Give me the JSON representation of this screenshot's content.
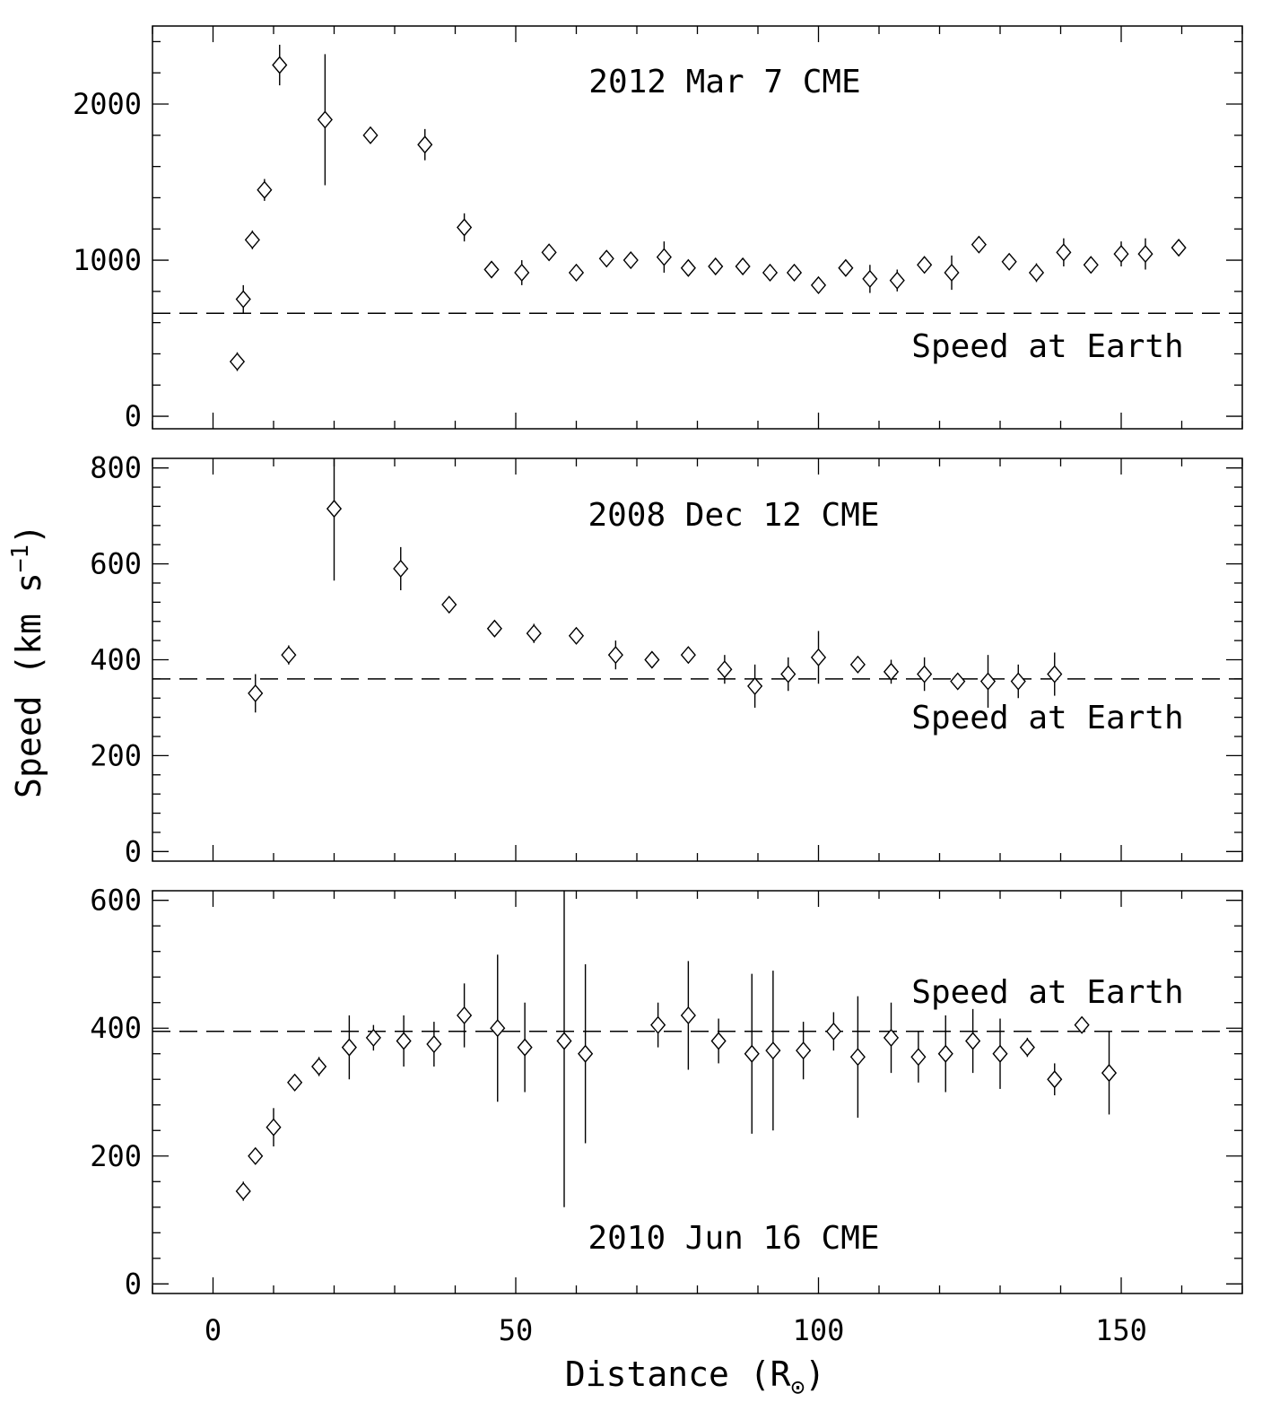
{
  "figure": {
    "ylabel": "Speed (km s",
    "ylabel_sup": "−1",
    "ylabel_close": ")",
    "xlabel": "Distance (R",
    "xlabel_sub": "⊙",
    "xlabel_close": ")"
  },
  "chart_data": [
    {
      "type": "scatter",
      "title": "2012 Mar 7 CME",
      "reference_label": "Speed at Earth",
      "reference_value": 660,
      "xlim": [
        -10,
        170
      ],
      "ylim": [
        -80,
        2500
      ],
      "xticks": [
        0,
        50,
        100,
        150
      ],
      "yticks": [
        0,
        1000,
        2000
      ],
      "ytick_labels": [
        "0",
        "1000",
        "2000"
      ],
      "x": [
        4,
        5,
        6.5,
        8.5,
        11,
        18.5,
        26,
        35,
        41.5,
        46,
        51,
        55.5,
        60,
        65,
        69,
        74.5,
        78.5,
        83,
        87.5,
        92,
        96,
        100,
        104.5,
        108.5,
        113,
        117.5,
        122,
        126.5,
        131.5,
        136,
        140.5,
        145,
        150,
        154,
        159.5
      ],
      "y": [
        350,
        750,
        1130,
        1450,
        2250,
        1900,
        1800,
        1740,
        1210,
        940,
        920,
        1050,
        920,
        1010,
        1000,
        1020,
        950,
        960,
        960,
        920,
        920,
        840,
        950,
        880,
        870,
        970,
        920,
        1100,
        990,
        920,
        1050,
        970,
        1040,
        1040,
        1080
      ],
      "err": [
        60,
        90,
        60,
        70,
        130,
        420,
        0,
        100,
        90,
        50,
        80,
        50,
        40,
        40,
        30,
        100,
        30,
        40,
        40,
        40,
        40,
        40,
        40,
        90,
        70,
        40,
        110,
        50,
        50,
        60,
        90,
        50,
        80,
        100,
        40
      ]
    },
    {
      "type": "scatter",
      "title": "2008 Dec 12 CME",
      "reference_label": "Speed at Earth",
      "reference_value": 360,
      "xlim": [
        -10,
        170
      ],
      "ylim": [
        -20,
        820
      ],
      "xticks": [
        0,
        50,
        100,
        150
      ],
      "yticks": [
        0,
        200,
        400,
        600,
        800
      ],
      "ytick_labels": [
        "0",
        "200",
        "400",
        "600",
        "800"
      ],
      "x": [
        7,
        12.5,
        20,
        31,
        39,
        46.5,
        53,
        60,
        66.5,
        72.5,
        78.5,
        84.5,
        89.5,
        95,
        100,
        106.5,
        112,
        117.5,
        123,
        128,
        133,
        139
      ],
      "y": [
        330,
        410,
        715,
        590,
        515,
        465,
        455,
        450,
        410,
        400,
        410,
        380,
        345,
        370,
        405,
        390,
        375,
        370,
        355,
        355,
        355,
        370
      ],
      "err": [
        40,
        20,
        150,
        45,
        15,
        10,
        20,
        15,
        30,
        15,
        15,
        30,
        45,
        35,
        55,
        15,
        25,
        35,
        15,
        55,
        35,
        45
      ]
    },
    {
      "type": "scatter",
      "title": "2010 Jun 16 CME",
      "reference_label": "Speed at Earth",
      "reference_value": 395,
      "xlim": [
        -10,
        170
      ],
      "ylim": [
        -15,
        615
      ],
      "xticks": [
        0,
        50,
        100,
        150
      ],
      "yticks": [
        0,
        200,
        400,
        600
      ],
      "ytick_labels": [
        "0",
        "200",
        "400",
        "600"
      ],
      "x": [
        5,
        7,
        10,
        13.5,
        17.5,
        22.5,
        26.5,
        31.5,
        36.5,
        41.5,
        47,
        51.5,
        58,
        61.5,
        73.5,
        78.5,
        83.5,
        89,
        92.5,
        97.5,
        102.5,
        106.5,
        112,
        116.5,
        121,
        125.5,
        130,
        134.5,
        139,
        143.5,
        148
      ],
      "y": [
        145,
        200,
        245,
        315,
        340,
        370,
        385,
        380,
        375,
        420,
        400,
        370,
        380,
        360,
        405,
        420,
        380,
        360,
        365,
        365,
        395,
        355,
        385,
        355,
        360,
        380,
        360,
        370,
        320,
        405,
        330
      ],
      "err": [
        15,
        10,
        30,
        10,
        15,
        50,
        20,
        40,
        35,
        50,
        115,
        70,
        260,
        140,
        35,
        85,
        35,
        125,
        125,
        45,
        30,
        95,
        55,
        40,
        60,
        50,
        55,
        15,
        25,
        10,
        65
      ]
    }
  ]
}
